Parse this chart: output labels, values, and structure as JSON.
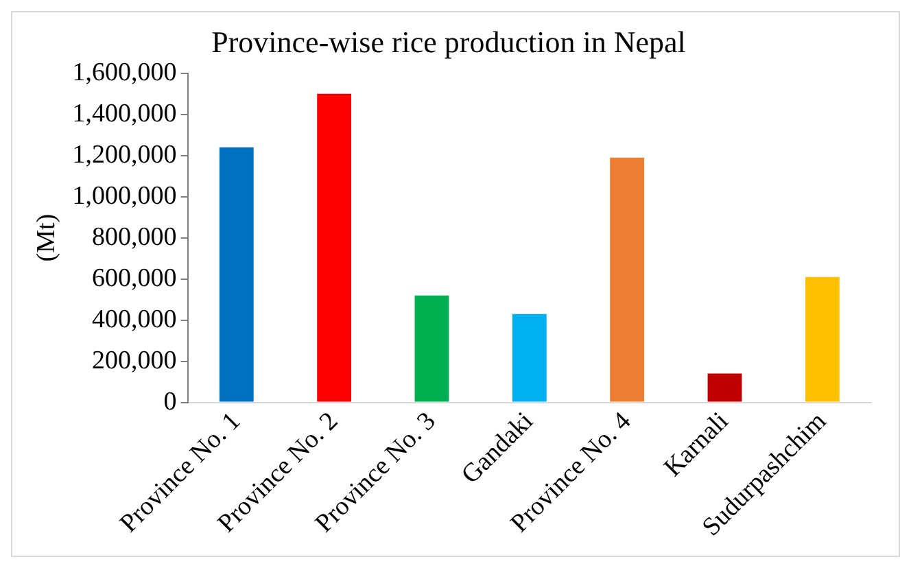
{
  "chart_data": {
    "type": "bar",
    "title": "Province-wise rice production in Nepal",
    "ylabel": "(Mt)",
    "categories": [
      "Province No. 1",
      "Province No. 2",
      "Province No. 3",
      "Gandaki",
      "Province No. 4",
      "Karnali",
      "Sudurpashchim"
    ],
    "values": [
      1240000,
      1500000,
      520000,
      430000,
      1190000,
      140000,
      610000
    ],
    "colors": [
      "#0070c0",
      "#ff0000",
      "#00b050",
      "#00b0f0",
      "#ed7d31",
      "#c00000",
      "#ffc000"
    ],
    "ylim": [
      0,
      1600000
    ],
    "yticks": [
      0,
      {
        "value": 200000,
        "label": "200,000"
      },
      {
        "value": 400000,
        "label": "400,000"
      },
      {
        "value": 600000,
        "label": "600,000"
      },
      {
        "value": 800000,
        "label": "800,000"
      },
      {
        "value": 1000000,
        "label": "1,000,000"
      },
      {
        "value": 1200000,
        "label": "1,200,000"
      },
      {
        "value": 1400000,
        "label": "1,400,000"
      },
      {
        "value": 1600000,
        "label": "1,600,000"
      }
    ],
    "grid": false,
    "legend": false
  }
}
